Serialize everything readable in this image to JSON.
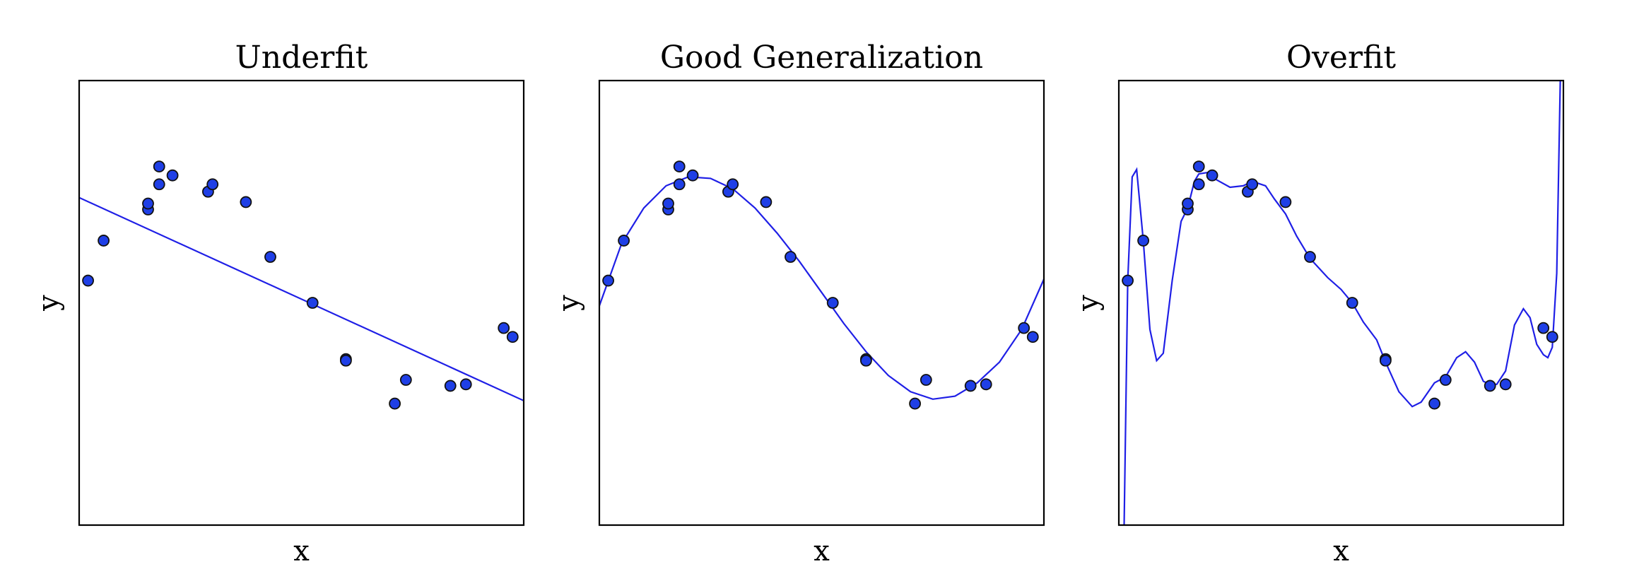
{
  "chart_data": [
    {
      "type": "scatter",
      "title": "Underfit",
      "xlabel": "x",
      "ylabel": "y",
      "xlim": [
        0,
        1
      ],
      "ylim": [
        -1.5,
        1.5
      ],
      "grid": false,
      "ticks_visible": false,
      "points": {
        "x": [
          0.02,
          0.055,
          0.155,
          0.155,
          0.18,
          0.18,
          0.21,
          0.29,
          0.3,
          0.375,
          0.43,
          0.525,
          0.6,
          0.6,
          0.71,
          0.735,
          0.835,
          0.87,
          0.955,
          0.975
        ],
        "y": [
          0.15,
          0.42,
          0.63,
          0.67,
          0.8,
          0.92,
          0.86,
          0.75,
          0.8,
          0.68,
          0.31,
          0.0,
          -0.38,
          -0.39,
          -0.68,
          -0.52,
          -0.56,
          -0.55,
          -0.17,
          -0.23
        ]
      },
      "fit": {
        "x": [
          0,
          1
        ],
        "y": [
          0.71,
          -0.66
        ]
      }
    },
    {
      "type": "scatter",
      "title": "Good Generalization",
      "xlabel": "x",
      "ylabel": "y",
      "xlim": [
        0,
        1
      ],
      "ylim": [
        -1.5,
        1.5
      ],
      "grid": false,
      "ticks_visible": false,
      "points": {
        "x": [
          0.02,
          0.055,
          0.155,
          0.155,
          0.18,
          0.18,
          0.21,
          0.29,
          0.3,
          0.375,
          0.43,
          0.525,
          0.6,
          0.6,
          0.71,
          0.735,
          0.835,
          0.87,
          0.955,
          0.975
        ],
        "y": [
          0.15,
          0.42,
          0.63,
          0.67,
          0.8,
          0.92,
          0.86,
          0.75,
          0.8,
          0.68,
          0.31,
          0.0,
          -0.38,
          -0.39,
          -0.68,
          -0.52,
          -0.56,
          -0.55,
          -0.17,
          -0.23
        ]
      },
      "fit": {
        "x": [
          0,
          0.05,
          0.1,
          0.15,
          0.2,
          0.25,
          0.3,
          0.35,
          0.4,
          0.45,
          0.5,
          0.55,
          0.6,
          0.65,
          0.7,
          0.75,
          0.8,
          0.85,
          0.9,
          0.95,
          1
        ],
        "y": [
          -0.02,
          0.4,
          0.64,
          0.79,
          0.85,
          0.84,
          0.77,
          0.64,
          0.47,
          0.28,
          0.07,
          -0.14,
          -0.33,
          -0.49,
          -0.6,
          -0.65,
          -0.63,
          -0.54,
          -0.4,
          -0.18,
          0.16
        ]
      }
    },
    {
      "type": "scatter",
      "title": "Overfit",
      "xlabel": "x",
      "ylabel": "y",
      "xlim": [
        0,
        1
      ],
      "ylim": [
        -1.5,
        1.5
      ],
      "grid": false,
      "ticks_visible": false,
      "points": {
        "x": [
          0.02,
          0.055,
          0.155,
          0.155,
          0.18,
          0.18,
          0.21,
          0.29,
          0.3,
          0.375,
          0.43,
          0.525,
          0.6,
          0.6,
          0.71,
          0.735,
          0.835,
          0.87,
          0.955,
          0.975
        ],
        "y": [
          0.15,
          0.42,
          0.63,
          0.67,
          0.8,
          0.92,
          0.86,
          0.75,
          0.8,
          0.68,
          0.31,
          0.0,
          -0.38,
          -0.39,
          -0.68,
          -0.52,
          -0.56,
          -0.55,
          -0.17,
          -0.23
        ]
      },
      "fit": {
        "x": [
          0.012,
          0.02,
          0.03,
          0.04,
          0.055,
          0.07,
          0.085,
          0.1,
          0.12,
          0.14,
          0.155,
          0.17,
          0.18,
          0.2,
          0.22,
          0.25,
          0.28,
          0.3,
          0.33,
          0.35,
          0.375,
          0.4,
          0.43,
          0.47,
          0.5,
          0.525,
          0.55,
          0.58,
          0.6,
          0.63,
          0.66,
          0.68,
          0.71,
          0.735,
          0.76,
          0.78,
          0.8,
          0.82,
          0.835,
          0.85,
          0.87,
          0.89,
          0.91,
          0.925,
          0.94,
          0.955,
          0.965,
          0.975,
          0.985,
          0.993
        ],
        "y": [
          -1.5,
          0.15,
          0.85,
          0.9,
          0.42,
          -0.18,
          -0.39,
          -0.34,
          0.15,
          0.55,
          0.64,
          0.82,
          0.87,
          0.88,
          0.83,
          0.78,
          0.79,
          0.82,
          0.79,
          0.7,
          0.6,
          0.45,
          0.3,
          0.17,
          0.09,
          0.0,
          -0.13,
          -0.25,
          -0.4,
          -0.6,
          -0.7,
          -0.67,
          -0.54,
          -0.5,
          -0.37,
          -0.33,
          -0.4,
          -0.53,
          -0.55,
          -0.55,
          -0.46,
          -0.15,
          -0.04,
          -0.1,
          -0.28,
          -0.35,
          -0.37,
          -0.3,
          0.2,
          1.5
        ]
      }
    }
  ]
}
